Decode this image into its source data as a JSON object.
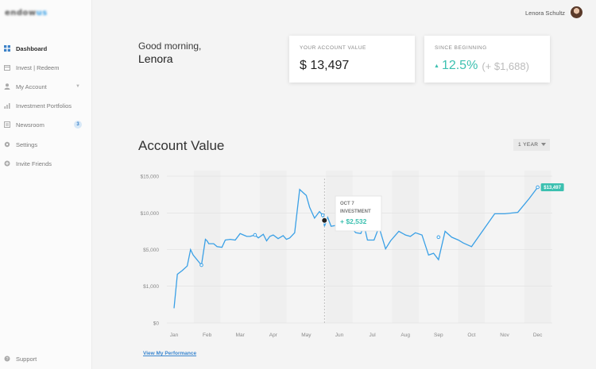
{
  "brand": {
    "logo_main": "endow",
    "logo_accent": "us"
  },
  "sidebar": {
    "items": [
      {
        "label": "Dashboard",
        "icon": "grid-icon",
        "active": true
      },
      {
        "label": "Invest | Redeem",
        "icon": "card-icon"
      },
      {
        "label": "My Account",
        "icon": "user-icon",
        "chevron": "chevron-down-icon"
      },
      {
        "label": "Investment Portfolios",
        "icon": "bar-chart-icon"
      },
      {
        "label": "Newsroom",
        "icon": "newspaper-icon",
        "badge": "3"
      },
      {
        "label": "Settings",
        "icon": "gear-icon"
      },
      {
        "label": "Invite Friends",
        "icon": "plus-circle-icon"
      }
    ],
    "support_label": "Support"
  },
  "header": {
    "user_name": "Lenora Schultz"
  },
  "greeting": {
    "line1": "Good morning,",
    "name": "Lenora"
  },
  "account_card": {
    "label": "YOUR ACCOUNT VALUE",
    "value": "$ 13,497"
  },
  "since_card": {
    "label": "SINCE BEGINNING",
    "percent": "12.5%",
    "amount": "(+ $1,688)"
  },
  "chart_section": {
    "title": "Account Value",
    "range": "1 YEAR"
  },
  "performance_link": "View My Performance",
  "colors": {
    "line": "#3aa0e6",
    "accent": "#3cc0b0",
    "marker": "#3aa0e6"
  },
  "chart_data": {
    "type": "line",
    "title": "Account Value",
    "x_categories": [
      "Jan",
      "Feb",
      "Mar",
      "Apr",
      "May",
      "Jun",
      "Jul",
      "Aug",
      "Sep",
      "Oct",
      "Nov",
      "Dec"
    ],
    "y_ticks": [
      "$0",
      "$1,000",
      "$5,000",
      "$10,000",
      "$15,000"
    ],
    "ylim": [
      0,
      15000
    ],
    "grid": true,
    "series": [
      {
        "x": [
          0,
          0.1,
          0.25,
          0.4,
          0.5,
          0.58,
          0.83,
          0.95,
          1.0,
          1.05,
          1.2,
          1.3,
          1.45,
          1.55,
          1.7,
          1.85,
          2.0,
          2.1,
          2.2,
          2.3,
          2.45,
          2.55,
          2.7,
          2.8,
          2.9,
          3.0,
          3.15,
          3.3,
          3.4,
          3.5,
          3.65,
          3.8,
          3.9,
          4.0,
          4.1,
          4.25,
          4.4,
          4.5,
          4.55,
          4.65,
          4.75,
          4.9,
          5.1,
          5.3,
          5.5,
          5.65,
          5.75,
          5.85,
          6.05,
          6.2,
          6.4,
          6.55,
          6.8,
          7.0,
          7.15,
          7.3,
          7.5,
          7.7,
          7.85,
          8.0,
          8.2,
          8.4,
          8.6,
          8.75,
          9.0,
          9.7,
          10.0,
          10.4,
          10.75,
          11.0,
          11.05
        ],
        "y": [
          400,
          2300,
          2700,
          3200,
          5000,
          4400,
          3300,
          6400,
          6200,
          5800,
          5800,
          5400,
          5300,
          6300,
          6400,
          6300,
          7200,
          7000,
          6800,
          6800,
          7000,
          6600,
          7100,
          6200,
          6800,
          7000,
          6500,
          6900,
          6400,
          6600,
          7300,
          13200,
          12800,
          12400,
          10800,
          9300,
          10200,
          9700,
          8200,
          9400,
          8200,
          8300,
          7600,
          8200,
          7300,
          7200,
          8300,
          6300,
          6300,
          8100,
          5100,
          6200,
          7500,
          7000,
          6800,
          7300,
          7000,
          4400,
          4600,
          3900,
          7500,
          6700,
          6300,
          5900,
          5400,
          9900,
          9900,
          10100,
          12000,
          13497,
          13500
        ]
      }
    ],
    "tooltip": {
      "date": "OCT 7",
      "label": "INVESTMENT",
      "amount": "+ $2,532"
    },
    "end_label": "$13,497"
  }
}
